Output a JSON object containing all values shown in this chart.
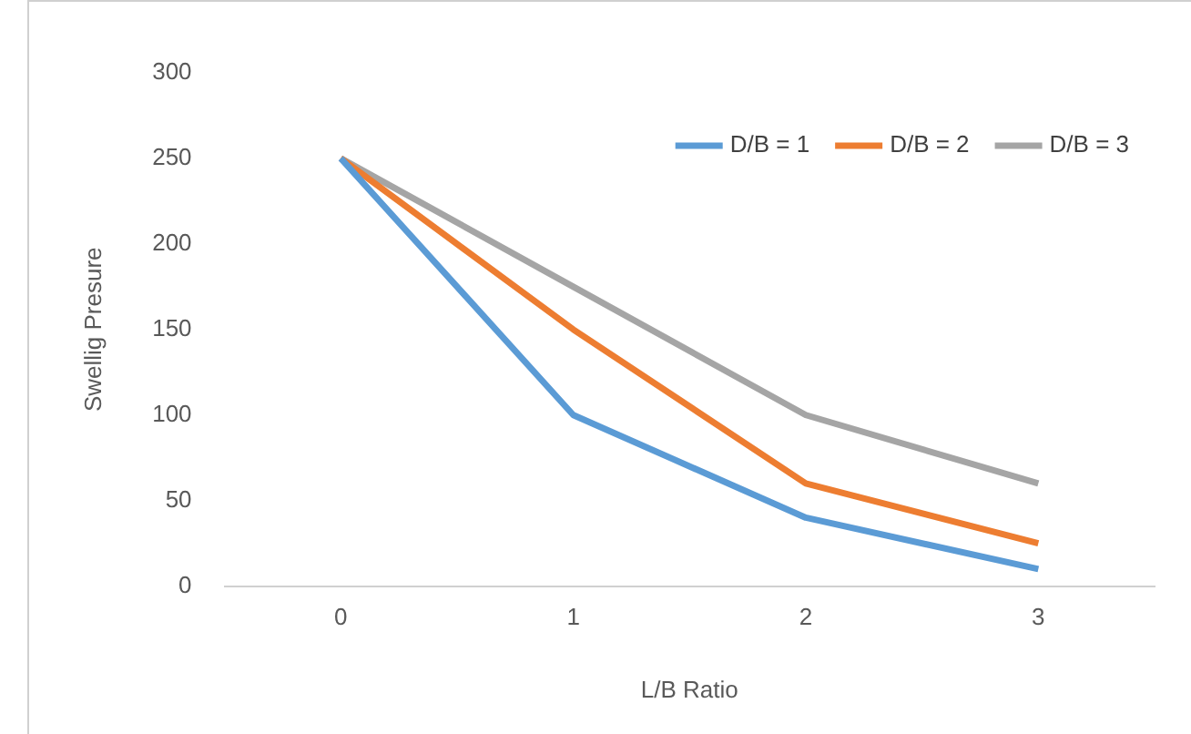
{
  "chart_data": {
    "type": "line",
    "xlabel": "L/B Ratio",
    "ylabel": "Swellig Presure",
    "categories": [
      "0",
      "1",
      "2",
      "3"
    ],
    "series": [
      {
        "name": "D/B = 1",
        "color": "#5b9bd5",
        "values": [
          250,
          100,
          40,
          10
        ]
      },
      {
        "name": "D/B = 2",
        "color": "#ed7d31",
        "values": [
          250,
          150,
          60,
          25
        ]
      },
      {
        "name": "D/B = 3",
        "color": "#a5a5a5",
        "values": [
          250,
          175,
          100,
          60
        ]
      }
    ],
    "ylim": [
      0,
      300
    ],
    "yticks": [
      0,
      50,
      100,
      150,
      200,
      250,
      300
    ],
    "grid": false,
    "legend": "top right",
    "marker": "none",
    "line_style": "solid"
  }
}
